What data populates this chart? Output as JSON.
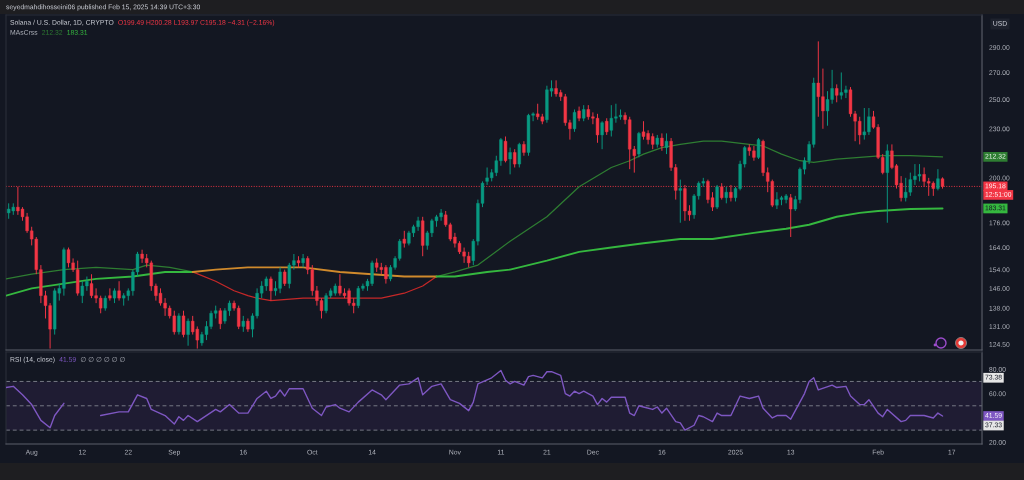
{
  "chart_data": [
    {
      "type": "candlestick",
      "title": "Solana / U.S. Dollar, 1D, CRYPTO",
      "subtitle": "seyedmahdihosseini06 published Feb 15, 2025 14:39 UTC+3:30",
      "ylabel": "USD",
      "x": [
        "2024-07-27",
        "2024-07-28",
        "2024-07-29",
        "2024-07-30",
        "2024-07-31",
        "2024-08-01",
        "2024-08-02",
        "2024-08-03",
        "2024-08-04",
        "2024-08-05",
        "2024-08-06",
        "2024-08-07",
        "2024-08-08",
        "2024-08-09",
        "2024-08-10",
        "2024-08-11",
        "2024-08-12",
        "2024-08-13",
        "2024-08-14",
        "2024-08-15",
        "2024-08-16",
        "2024-08-17",
        "2024-08-18",
        "2024-08-19",
        "2024-08-20",
        "2024-08-21",
        "2024-08-22",
        "2024-08-23",
        "2024-08-24",
        "2024-08-25",
        "2024-08-26",
        "2024-08-27",
        "2024-08-28",
        "2024-08-29",
        "2024-08-30",
        "2024-08-31",
        "2024-09-01",
        "2024-09-02",
        "2024-09-03",
        "2024-09-04",
        "2024-09-05",
        "2024-09-06",
        "2024-09-07",
        "2024-09-08",
        "2024-09-09",
        "2024-09-10",
        "2024-09-11",
        "2024-09-12",
        "2024-09-13",
        "2024-09-14",
        "2024-09-15",
        "2024-09-16",
        "2024-09-17",
        "2024-09-18",
        "2024-09-19",
        "2024-09-20",
        "2024-09-21",
        "2024-09-22",
        "2024-09-23",
        "2024-09-24",
        "2024-09-25",
        "2024-09-26",
        "2024-09-27",
        "2024-09-28",
        "2024-09-29",
        "2024-09-30",
        "2024-10-01",
        "2024-10-02",
        "2024-10-03",
        "2024-10-04",
        "2024-10-05",
        "2024-10-06",
        "2024-10-07",
        "2024-10-08",
        "2024-10-09",
        "2024-10-10",
        "2024-10-11",
        "2024-10-12",
        "2024-10-13",
        "2024-10-14",
        "2024-10-15",
        "2024-10-16",
        "2024-10-17",
        "2024-10-18",
        "2024-10-19",
        "2024-10-20",
        "2024-10-21",
        "2024-10-22",
        "2024-10-23",
        "2024-10-24",
        "2024-10-25",
        "2024-10-26",
        "2024-10-27",
        "2024-10-28",
        "2024-10-29",
        "2024-10-30",
        "2024-10-31",
        "2024-11-01",
        "2024-11-02",
        "2024-11-03",
        "2024-11-04",
        "2024-11-05",
        "2024-11-06",
        "2024-11-07",
        "2024-11-08",
        "2024-11-09",
        "2024-11-10",
        "2024-11-11",
        "2024-11-12",
        "2024-11-13",
        "2024-11-14",
        "2024-11-15",
        "2024-11-16",
        "2024-11-17",
        "2024-11-18",
        "2024-11-19",
        "2024-11-20",
        "2024-11-21",
        "2024-11-22",
        "2024-11-23",
        "2024-11-24",
        "2024-11-25",
        "2024-11-26",
        "2024-11-27",
        "2024-11-28",
        "2024-11-29",
        "2024-11-30",
        "2024-12-01",
        "2024-12-02",
        "2024-12-03",
        "2024-12-04",
        "2024-12-05",
        "2024-12-06",
        "2024-12-07",
        "2024-12-08",
        "2024-12-09",
        "2024-12-10",
        "2024-12-11",
        "2024-12-12",
        "2024-12-13",
        "2024-12-14",
        "2024-12-15",
        "2024-12-16",
        "2024-12-17",
        "2024-12-18",
        "2024-12-19",
        "2024-12-20",
        "2024-12-21",
        "2024-12-22",
        "2024-12-23",
        "2024-12-24",
        "2024-12-25",
        "2024-12-26",
        "2024-12-27",
        "2024-12-28",
        "2024-12-29",
        "2024-12-30",
        "2024-12-31",
        "2025-01-01",
        "2025-01-02",
        "2025-01-03",
        "2025-01-04",
        "2025-01-05",
        "2025-01-06",
        "2025-01-07",
        "2025-01-08",
        "2025-01-09",
        "2025-01-10",
        "2025-01-11",
        "2025-01-12",
        "2025-01-13",
        "2025-01-14",
        "2025-01-15",
        "2025-01-16",
        "2025-01-17",
        "2025-01-18",
        "2025-01-19",
        "2025-01-20",
        "2025-01-21",
        "2025-01-22",
        "2025-01-23",
        "2025-01-24",
        "2025-01-25",
        "2025-01-26",
        "2025-01-27",
        "2025-01-28",
        "2025-01-29",
        "2025-01-30",
        "2025-01-31",
        "2025-02-01",
        "2025-02-02",
        "2025-02-03",
        "2025-02-04",
        "2025-02-05",
        "2025-02-06",
        "2025-02-07",
        "2025-02-08",
        "2025-02-09",
        "2025-02-10",
        "2025-02-11",
        "2025-02-12",
        "2025-02-13",
        "2025-02-14",
        "2025-02-15"
      ],
      "ohlc": [
        [
          181,
          186,
          178,
          183
        ],
        [
          182,
          186,
          180,
          184
        ],
        [
          184,
          195,
          180,
          182
        ],
        [
          183,
          184,
          177,
          179
        ],
        [
          179,
          181,
          171,
          172
        ],
        [
          172,
          174,
          165,
          168
        ],
        [
          168,
          169,
          152,
          154
        ],
        [
          154,
          156,
          140,
          143
        ],
        [
          143,
          145,
          134,
          139
        ],
        [
          139,
          140,
          123,
          130
        ],
        [
          130,
          146,
          128,
          145
        ],
        [
          144,
          148,
          141,
          146
        ],
        [
          146,
          164,
          143,
          163
        ],
        [
          163,
          164,
          155,
          157
        ],
        [
          157,
          159,
          153,
          154
        ],
        [
          154,
          158,
          143,
          144
        ],
        [
          143,
          149,
          140,
          147
        ],
        [
          147,
          151,
          145,
          149
        ],
        [
          148,
          152,
          142,
          143
        ],
        [
          143,
          146,
          140,
          142
        ],
        [
          142,
          143,
          136,
          138
        ],
        [
          138,
          143,
          137,
          142
        ],
        [
          143,
          146,
          141,
          142
        ],
        [
          142,
          146,
          140,
          145
        ],
        [
          145,
          149,
          141,
          142
        ],
        [
          142,
          144,
          139,
          143
        ],
        [
          143,
          146,
          141,
          145
        ],
        [
          145,
          154,
          143,
          153
        ],
        [
          153,
          162,
          151,
          161
        ],
        [
          161,
          163,
          157,
          159
        ],
        [
          159,
          161,
          155,
          157
        ],
        [
          157,
          158,
          145,
          147
        ],
        [
          147,
          148,
          141,
          143
        ],
        [
          144,
          146,
          139,
          140
        ],
        [
          140,
          142,
          135,
          138
        ],
        [
          138,
          139,
          134,
          135
        ],
        [
          135,
          137,
          128,
          129
        ],
        [
          129,
          136,
          128,
          135
        ],
        [
          135,
          137,
          127,
          128
        ],
        [
          128,
          134,
          124,
          133
        ],
        [
          133,
          135,
          128,
          129
        ],
        [
          130,
          131,
          123,
          126
        ],
        [
          125,
          129,
          124,
          128
        ],
        [
          128,
          133,
          126,
          131
        ],
        [
          131,
          137,
          130,
          136
        ],
        [
          136,
          139,
          134,
          137
        ],
        [
          137,
          138,
          130,
          132
        ],
        [
          133,
          138,
          132,
          137
        ],
        [
          137,
          141,
          135,
          140
        ],
        [
          140,
          141,
          137,
          138
        ],
        [
          138,
          139,
          130,
          131
        ],
        [
          131,
          135,
          129,
          133
        ],
        [
          133,
          134,
          129,
          130
        ],
        [
          130,
          136,
          127,
          135
        ],
        [
          135,
          146,
          134,
          144
        ],
        [
          144,
          149,
          142,
          147
        ],
        [
          147,
          151,
          145,
          150
        ],
        [
          150,
          151,
          141,
          145
        ],
        [
          145,
          149,
          143,
          146
        ],
        [
          146,
          155,
          144,
          153
        ],
        [
          153,
          154,
          147,
          148
        ],
        [
          148,
          157,
          146,
          156
        ],
        [
          156,
          161,
          154,
          158
        ],
        [
          158,
          160,
          155,
          157
        ],
        [
          157,
          161,
          155,
          159
        ],
        [
          159,
          160,
          152,
          154
        ],
        [
          154,
          156,
          143,
          145
        ],
        [
          145,
          147,
          139,
          141
        ],
        [
          141,
          142,
          134,
          137
        ],
        [
          137,
          144,
          136,
          143
        ],
        [
          143,
          146,
          142,
          145
        ],
        [
          144,
          148,
          143,
          147
        ],
        [
          147,
          152,
          143,
          144
        ],
        [
          144,
          146,
          142,
          143
        ],
        [
          145,
          146,
          139,
          140
        ],
        [
          140,
          142,
          136,
          139
        ],
        [
          139,
          147,
          138,
          146
        ],
        [
          146,
          148,
          145,
          147
        ],
        [
          147,
          150,
          145,
          149
        ],
        [
          148,
          158,
          147,
          157
        ],
        [
          157,
          159,
          153,
          155
        ],
        [
          155,
          157,
          152,
          154
        ],
        [
          155,
          156,
          148,
          150
        ],
        [
          150,
          156,
          149,
          155
        ],
        [
          155,
          160,
          154,
          159
        ],
        [
          159,
          168,
          158,
          167
        ],
        [
          168,
          172,
          164,
          166
        ],
        [
          166,
          172,
          165,
          171
        ],
        [
          171,
          175,
          169,
          174
        ],
        [
          174,
          179,
          172,
          177
        ],
        [
          177,
          179,
          160,
          165
        ],
        [
          165,
          172,
          163,
          171
        ],
        [
          171,
          178,
          169,
          177
        ],
        [
          177,
          180,
          174,
          179
        ],
        [
          179,
          183,
          177,
          181
        ],
        [
          180,
          182,
          174,
          175
        ],
        [
          175,
          176,
          167,
          168
        ],
        [
          169,
          171,
          164,
          166
        ],
        [
          166,
          167,
          161,
          162
        ],
        [
          162,
          164,
          157,
          160
        ],
        [
          160,
          162,
          155,
          157
        ],
        [
          158,
          168,
          156,
          167
        ],
        [
          167,
          188,
          165,
          186
        ],
        [
          186,
          198,
          184,
          197
        ],
        [
          198,
          206,
          196,
          200
        ],
        [
          200,
          205,
          198,
          203
        ],
        [
          203,
          213,
          201,
          210
        ],
        [
          210,
          224,
          207,
          223
        ],
        [
          222,
          225,
          209,
          210
        ],
        [
          211,
          218,
          202,
          215
        ],
        [
          215,
          217,
          206,
          208
        ],
        [
          208,
          221,
          206,
          220
        ],
        [
          220,
          222,
          213,
          215
        ],
        [
          215,
          240,
          213,
          239
        ],
        [
          239,
          241,
          235,
          240
        ],
        [
          240,
          247,
          236,
          238
        ],
        [
          238,
          240,
          233,
          235
        ],
        [
          236,
          260,
          234,
          257
        ],
        [
          256,
          264,
          252,
          258
        ],
        [
          258,
          264,
          252,
          254
        ],
        [
          255,
          257,
          249,
          252
        ],
        [
          252,
          254,
          232,
          234
        ],
        [
          234,
          236,
          223,
          230
        ],
        [
          230,
          243,
          228,
          241
        ],
        [
          242,
          245,
          235,
          237
        ],
        [
          237,
          246,
          235,
          243
        ],
        [
          243,
          246,
          236,
          238
        ],
        [
          238,
          241,
          233,
          237
        ],
        [
          237,
          240,
          221,
          226
        ],
        [
          226,
          235,
          217,
          234
        ],
        [
          235,
          237,
          226,
          228
        ],
        [
          229,
          246,
          225,
          237
        ],
        [
          237,
          247,
          234,
          238
        ],
        [
          238,
          243,
          236,
          239
        ],
        [
          239,
          241,
          233,
          236
        ],
        [
          236,
          238,
          205,
          217
        ],
        [
          217,
          219,
          203,
          213
        ],
        [
          214,
          228,
          212,
          227
        ],
        [
          228,
          235,
          223,
          225
        ],
        [
          227,
          229,
          220,
          223
        ],
        [
          225,
          227,
          217,
          220
        ],
        [
          220,
          226,
          218,
          224
        ],
        [
          224,
          227,
          216,
          219
        ],
        [
          218,
          227,
          214,
          222
        ],
        [
          222,
          224,
          204,
          206
        ],
        [
          206,
          208,
          188,
          193
        ],
        [
          193,
          199,
          176,
          194
        ],
        [
          194,
          196,
          177,
          182
        ],
        [
          182,
          185,
          177,
          180
        ],
        [
          180,
          191,
          178,
          190
        ],
        [
          190,
          198,
          188,
          197
        ],
        [
          197,
          200,
          195,
          198
        ],
        [
          198,
          199,
          186,
          188
        ],
        [
          189,
          192,
          182,
          184
        ],
        [
          184,
          196,
          183,
          195
        ],
        [
          195,
          197,
          188,
          189
        ],
        [
          189,
          195,
          186,
          192
        ],
        [
          192,
          196,
          187,
          189
        ],
        [
          189,
          195,
          187,
          194
        ],
        [
          194,
          210,
          193,
          208
        ],
        [
          208,
          219,
          206,
          218
        ],
        [
          218,
          220,
          213,
          216
        ],
        [
          216,
          219,
          210,
          212
        ],
        [
          212,
          224,
          211,
          223
        ],
        [
          222,
          223,
          201,
          203
        ],
        [
          203,
          206,
          192,
          198
        ],
        [
          198,
          199,
          184,
          185
        ],
        [
          185,
          192,
          183,
          188
        ],
        [
          188,
          190,
          185,
          189
        ],
        [
          188,
          191,
          186,
          190
        ],
        [
          189,
          191,
          169,
          183
        ],
        [
          183,
          190,
          182,
          188
        ],
        [
          188,
          206,
          186,
          205
        ],
        [
          205,
          212,
          202,
          210
        ],
        [
          210,
          222,
          208,
          220
        ],
        [
          220,
          266,
          218,
          262
        ],
        [
          262,
          295,
          238,
          252
        ],
        [
          252,
          273,
          230,
          242
        ],
        [
          242,
          256,
          232,
          250
        ],
        [
          250,
          272,
          247,
          258
        ],
        [
          258,
          261,
          248,
          253
        ],
        [
          253,
          270,
          250,
          255
        ],
        [
          255,
          260,
          251,
          257
        ],
        [
          257,
          259,
          238,
          240
        ],
        [
          240,
          242,
          222,
          235
        ],
        [
          235,
          238,
          220,
          226
        ],
        [
          226,
          244,
          223,
          228
        ],
        [
          228,
          244,
          226,
          238
        ],
        [
          238,
          242,
          230,
          231
        ],
        [
          231,
          233,
          211,
          212
        ],
        [
          212,
          214,
          202,
          203
        ],
        [
          203,
          220,
          176,
          216
        ],
        [
          216,
          220,
          205,
          206
        ],
        [
          207,
          208,
          194,
          196
        ],
        [
          197,
          201,
          187,
          189
        ],
        [
          189,
          200,
          187,
          192
        ],
        [
          192,
          203,
          190,
          199
        ],
        [
          199,
          208,
          196,
          201
        ],
        [
          201,
          208,
          198,
          202
        ],
        [
          202,
          206,
          195,
          198
        ],
        [
          198,
          200,
          190,
          197
        ],
        [
          197,
          198,
          190,
          194
        ],
        [
          194,
          205,
          193,
          199.5
        ],
        [
          199.49,
          200.28,
          193.97,
          195.18
        ]
      ],
      "colors": [
        "#089981",
        "#089981",
        "#f23645",
        "#f23645",
        "#f23645",
        "#f23645",
        "#f23645",
        "#f23645",
        "#f23645",
        "#f23645",
        "#089981",
        "#089981",
        "#089981",
        "#f23645",
        "#f23645",
        "#f23645",
        "#089981",
        "#089981",
        "#f23645",
        "#f23645",
        "#f23645",
        "#089981",
        "#f23645",
        "#089981",
        "#f23645",
        "#089981",
        "#089981",
        "#089981",
        "#089981",
        "#f23645",
        "#f23645",
        "#f23645",
        "#f23645",
        "#f23645",
        "#f23645",
        "#f23645",
        "#f23645",
        "#089981",
        "#f23645",
        "#089981",
        "#f23645",
        "#f23645",
        "#089981",
        "#089981",
        "#089981",
        "#089981",
        "#f23645",
        "#089981",
        "#089981",
        "#f23645",
        "#f23645",
        "#089981",
        "#f23645",
        "#089981",
        "#089981",
        "#089981",
        "#089981",
        "#f23645",
        "#089981",
        "#089981",
        "#f23645",
        "#089981",
        "#089981",
        "#f23645",
        "#089981",
        "#f23645",
        "#f23645",
        "#f23645",
        "#f23645",
        "#089981",
        "#089981",
        "#089981",
        "#f23645",
        "#f23645",
        "#f23645",
        "#f23645",
        "#089981",
        "#089981",
        "#089981",
        "#089981",
        "#f23645",
        "#f23645",
        "#f23645",
        "#089981",
        "#089981",
        "#089981",
        "#f23645",
        "#089981",
        "#089981",
        "#089981",
        "#f23645",
        "#089981",
        "#089981",
        "#089981",
        "#089981",
        "#f23645",
        "#f23645",
        "#f23645",
        "#f23645",
        "#f23645",
        "#f23645",
        "#089981",
        "#089981",
        "#089981",
        "#089981",
        "#089981",
        "#089981",
        "#089981",
        "#f23645",
        "#089981",
        "#f23645",
        "#089981",
        "#f23645",
        "#089981",
        "#089981",
        "#f23645",
        "#f23645",
        "#089981",
        "#089981",
        "#f23645",
        "#f23645",
        "#f23645",
        "#f23645",
        "#089981",
        "#f23645",
        "#089981",
        "#f23645",
        "#f23645",
        "#f23645",
        "#089981",
        "#f23645",
        "#089981",
        "#089981",
        "#089981",
        "#f23645",
        "#f23645",
        "#f23645",
        "#089981",
        "#f23645",
        "#f23645",
        "#f23645",
        "#089981",
        "#f23645",
        "#089981",
        "#f23645",
        "#f23645",
        "#089981",
        "#f23645",
        "#f23645",
        "#089981",
        "#089981",
        "#089981",
        "#f23645",
        "#f23645",
        "#089981",
        "#f23645",
        "#089981",
        "#f23645",
        "#089981",
        "#089981",
        "#089981",
        "#f23645",
        "#f23645",
        "#089981",
        "#f23645",
        "#f23645",
        "#f23645",
        "#089981",
        "#089981",
        "#089981",
        "#f23645",
        "#089981",
        "#089981",
        "#089981",
        "#089981",
        "#089981",
        "#f23645",
        "#f23645",
        "#089981",
        "#089981",
        "#f23645",
        "#089981",
        "#089981",
        "#f23645",
        "#f23645",
        "#f23645",
        "#089981",
        "#089981",
        "#f23645",
        "#f23645",
        "#f23645",
        "#089981",
        "#f23645",
        "#f23645",
        "#f23645",
        "#089981",
        "#089981",
        "#089981",
        "#089981",
        "#f23645",
        "#f23645",
        "#f23645",
        "#089981",
        "#f23645"
      ],
      "series": [
        {
          "type": "line",
          "color": "#2e7d32",
          "x": [
            "2024-07-26T10:00",
            "2024-08-01",
            "2024-08-08",
            "2024-08-15",
            "2024-08-23",
            "2024-08-26",
            "2024-08-31",
            "2024-09-05"
          ],
          "values": [
            150,
            152,
            154,
            155,
            154,
            156,
            155,
            153
          ]
        },
        {
          "type": "line",
          "color": "#c62828",
          "x": [
            "2024-09-05",
            "2024-09-10",
            "2024-09-14",
            "2024-09-17",
            "2024-09-19",
            "2024-09-22",
            "2024-09-29",
            "2024-10-07",
            "2024-10-16",
            "2024-10-21",
            "2024-10-25",
            "2024-10-28"
          ],
          "values": [
            153,
            149,
            145,
            143,
            142,
            141,
            142,
            142,
            142,
            144,
            147,
            151
          ]
        },
        {
          "type": "line",
          "color": "#2e7d32",
          "x": [
            "2024-10-28",
            "2024-11-01",
            "2024-11-06",
            "2024-11-13",
            "2024-11-21",
            "2024-11-28",
            "2024-12-05",
            "2024-12-09",
            "2024-12-12",
            "2024-12-16",
            "2024-12-20",
            "2024-12-25",
            "2024-12-29",
            "2025-01-04",
            "2025-01-07",
            "2025-01-11",
            "2025-01-15",
            "2025-01-18",
            "2025-01-23",
            "2025-01-28",
            "2025-02-02",
            "2025-02-08",
            "2025-02-15"
          ],
          "values": [
            151,
            153,
            156,
            167,
            179,
            195,
            206,
            210,
            214,
            218,
            220,
            222,
            222,
            220,
            219,
            214,
            210,
            209,
            211,
            212,
            213,
            213,
            212.32
          ]
        },
        {
          "type": "line",
          "color": "#35b83f",
          "x": [
            "2024-07-26T10:00",
            "2024-08-01",
            "2024-08-08",
            "2024-08-15",
            "2024-08-23",
            "2024-08-30",
            "2024-09-05"
          ],
          "values": [
            143,
            146,
            148,
            150,
            151,
            153,
            153
          ]
        },
        {
          "type": "line",
          "color": "#d08a2c",
          "x": [
            "2024-09-05",
            "2024-09-10",
            "2024-09-17",
            "2024-09-29",
            "2024-10-07",
            "2024-10-14",
            "2024-10-21",
            "2024-10-28"
          ],
          "values": [
            153,
            154,
            155,
            155,
            153,
            152,
            151,
            151
          ]
        },
        {
          "type": "line",
          "color": "#35b83f",
          "x": [
            "2024-10-28",
            "2024-11-01",
            "2024-11-08",
            "2024-11-13",
            "2024-11-21",
            "2024-11-28",
            "2024-12-05",
            "2024-12-12",
            "2024-12-20",
            "2024-12-27",
            "2025-01-05",
            "2025-01-12",
            "2025-01-17",
            "2025-01-23",
            "2025-01-28",
            "2025-02-01",
            "2025-02-08",
            "2025-02-15"
          ],
          "values": [
            151,
            151,
            153,
            154,
            158,
            162,
            164,
            166,
            168,
            168,
            171,
            173,
            175,
            179,
            181,
            182,
            183,
            183.31
          ]
        }
      ],
      "ref_lines": [
        {
          "axis": "y",
          "value": 195.18,
          "label": "195.18",
          "color": "#f23645",
          "line_style": "dotted"
        }
      ],
      "annotations": [
        "O199.49 H200.28 L193.97 C195.18 −4.31 (−2.16%)",
        "MAsCrss",
        "212.32",
        "183.31",
        "12:51:00",
        "212.32",
        "183.31"
      ],
      "xlim": [
        "2024-07-26T10:00",
        "2025-02-23T14:00"
      ],
      "ylim": [
        122.5,
        318
      ],
      "log": true,
      "yticks": [
        {
          "value": 124.5,
          "label": "124.50"
        },
        {
          "value": 131,
          "label": "131.00"
        },
        {
          "value": 138,
          "label": "138.00"
        },
        {
          "value": 146,
          "label": "146.00"
        },
        {
          "value": 154,
          "label": "154.00"
        },
        {
          "value": 164,
          "label": "164.00"
        },
        {
          "value": 176,
          "label": "176.00"
        },
        {
          "value": 200,
          "label": "200.00"
        },
        {
          "value": 230,
          "label": "230.00"
        },
        {
          "value": 250,
          "label": "250.00"
        },
        {
          "value": 270,
          "label": "270.00"
        },
        {
          "value": 290,
          "label": "290.00"
        }
      ],
      "tick_labels": "y"
    },
    {
      "type": "line",
      "title": "RSI (14, close)",
      "x": [
        "2024-07-26T10:00",
        "2024-07-28",
        "2024-07-30",
        "2024-08-01",
        "2024-08-03",
        "2024-08-05",
        "2024-08-06",
        "2024-08-08",
        "2024-08-12",
        "2024-08-16",
        "2024-08-20",
        "2024-08-22",
        "2024-08-24",
        "2024-08-26",
        "2024-08-27",
        "2024-08-30",
        "2024-09-01",
        "2024-09-02",
        "2024-09-03",
        "2024-09-04",
        "2024-09-06",
        "2024-09-10",
        "2024-09-11",
        "2024-09-13",
        "2024-09-15",
        "2024-09-17",
        "2024-09-19",
        "2024-09-21",
        "2024-09-22",
        "2024-09-23",
        "2024-09-24",
        "2024-09-25",
        "2024-09-26",
        "2024-09-29",
        "2024-10-01",
        "2024-10-03",
        "2024-10-04",
        "2024-10-06",
        "2024-10-07",
        "2024-10-09",
        "2024-10-11",
        "2024-10-14",
        "2024-10-16",
        "2024-10-17",
        "2024-10-20",
        "2024-10-22",
        "2024-10-24",
        "2024-10-25",
        "2024-10-27",
        "2024-10-29",
        "2024-10-31",
        "2024-11-02",
        "2024-11-04",
        "2024-11-05",
        "2024-11-06",
        "2024-11-09",
        "2024-11-11",
        "2024-11-12",
        "2024-11-13",
        "2024-11-14",
        "2024-11-16",
        "2024-11-17",
        "2024-11-18",
        "2024-11-20",
        "2024-11-21",
        "2024-11-22",
        "2024-11-24",
        "2024-11-25",
        "2024-11-26",
        "2024-11-27",
        "2024-11-28",
        "2024-11-29",
        "2024-12-01",
        "2024-12-02",
        "2024-12-03",
        "2024-12-04",
        "2024-12-05",
        "2024-12-08",
        "2024-12-09",
        "2024-12-10",
        "2024-12-11",
        "2024-12-12",
        "2024-12-14",
        "2024-12-15",
        "2024-12-16",
        "2024-12-17",
        "2024-12-19",
        "2024-12-20",
        "2024-12-21",
        "2024-12-23",
        "2024-12-24",
        "2024-12-25",
        "2024-12-27",
        "2024-12-28",
        "2024-12-29",
        "2024-12-31",
        "2025-01-02",
        "2025-01-04",
        "2025-01-06",
        "2025-01-07",
        "2025-01-09",
        "2025-01-10",
        "2025-01-12",
        "2025-01-13",
        "2025-01-15",
        "2025-01-16",
        "2025-01-17",
        "2025-01-18",
        "2025-01-19",
        "2025-01-22",
        "2025-01-23",
        "2025-01-25",
        "2025-01-26",
        "2025-01-28",
        "2025-01-29",
        "2025-01-30",
        "2025-02-01",
        "2025-02-02",
        "2025-02-03",
        "2025-02-06",
        "2025-02-07",
        "2025-02-08",
        "2025-02-11",
        "2025-02-13",
        "2025-02-14",
        "2025-02-15"
      ],
      "series": [
        {
          "color": "#7e57c2",
          "values": [
            65,
            66,
            59,
            51,
            38,
            32,
            42,
            52,
            null,
            42,
            45,
            45,
            59,
            56,
            47,
            42,
            35,
            41,
            38,
            42,
            37,
            47,
            45,
            51,
            44,
            44,
            56,
            62,
            56,
            58,
            63,
            58,
            64,
            64,
            48,
            42,
            49,
            51,
            48,
            45,
            53,
            63,
            59,
            55,
            67,
            68,
            73,
            59,
            66,
            68,
            55,
            52,
            46,
            53,
            68,
            73,
            79,
            71,
            68,
            70,
            67,
            74,
            75,
            73,
            78,
            78,
            75,
            60,
            58,
            62,
            60,
            62,
            58,
            51,
            56,
            53,
            57,
            57,
            44,
            42,
            50,
            49,
            47,
            49,
            44,
            48,
            37,
            36,
            30,
            34,
            42,
            41,
            37,
            44,
            42,
            42,
            58,
            56,
            58,
            48,
            40,
            42,
            42,
            39,
            53,
            60,
            70,
            73,
            63,
            67,
            65,
            66,
            58,
            51,
            51,
            55,
            44,
            41,
            47,
            37,
            38,
            42,
            42,
            40,
            44,
            41.59
          ]
        }
      ],
      "ref_lines": [
        {
          "axis": "y",
          "value": 70,
          "color": "#787b86",
          "line_style": "dashed"
        },
        {
          "axis": "y",
          "value": 50,
          "color": "#787b86",
          "line_style": "dashed"
        },
        {
          "axis": "y",
          "value": 30,
          "color": "#787b86",
          "line_style": "dashed"
        }
      ],
      "bands": [
        {
          "axis": "y",
          "from": 30,
          "to": 70,
          "color": "#1f1c33"
        }
      ],
      "annotations": [
        "41.59",
        "∅ ∅ ∅ ∅ ∅ ∅",
        "73.38",
        "41.59",
        "37.33"
      ],
      "xlim": [
        "2024-07-26T10:00",
        "2025-02-23T14:00"
      ],
      "ylim": [
        18.6,
        94.2
      ],
      "xticks": [
        {
          "value": "2024-08-01",
          "label": "Aug"
        },
        {
          "value": "2024-08-12",
          "label": "12"
        },
        {
          "value": "2024-08-22",
          "label": "22"
        },
        {
          "value": "2024-09-01",
          "label": "Sep"
        },
        {
          "value": "2024-09-16",
          "label": "16"
        },
        {
          "value": "2024-10-01",
          "label": "Oct"
        },
        {
          "value": "2024-10-14",
          "label": "14"
        },
        {
          "value": "2024-11-01",
          "label": "Nov"
        },
        {
          "value": "2024-11-11",
          "label": "11"
        },
        {
          "value": "2024-11-21",
          "label": "21"
        },
        {
          "value": "2024-12-01",
          "label": "Dec"
        },
        {
          "value": "2024-12-16",
          "label": "16"
        },
        {
          "value": "2025-01-01",
          "label": "2025"
        },
        {
          "value": "2025-01-13",
          "label": "13"
        },
        {
          "value": "2025-02-01",
          "label": "Feb"
        },
        {
          "value": "2025-02-17",
          "label": "17"
        }
      ],
      "yticks": [
        {
          "value": 20,
          "label": "20.00"
        },
        {
          "value": 60,
          "label": "60.00"
        },
        {
          "value": 80,
          "label": "80.00"
        }
      ]
    }
  ]
}
